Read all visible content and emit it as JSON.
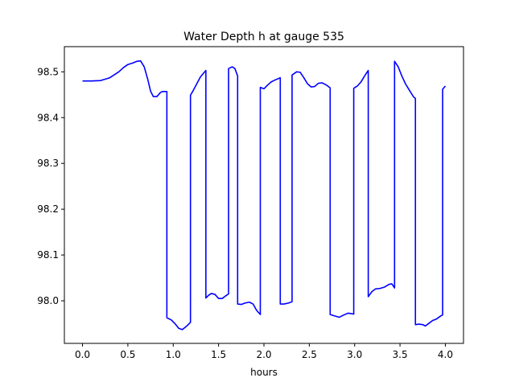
{
  "chart_data": {
    "type": "line",
    "title": "Water Depth h at gauge 535",
    "xlabel": "hours",
    "ylabel": "",
    "xlim": [
      -0.2,
      4.2
    ],
    "ylim": [
      97.907,
      98.555
    ],
    "x_ticks": [
      0.0,
      0.5,
      1.0,
      1.5,
      2.0,
      2.5,
      3.0,
      3.5,
      4.0
    ],
    "x_tick_labels": [
      "0.0",
      "0.5",
      "1.0",
      "1.5",
      "2.0",
      "2.5",
      "3.0",
      "3.5",
      "4.0"
    ],
    "y_ticks": [
      98.0,
      98.1,
      98.2,
      98.3,
      98.4,
      98.5
    ],
    "y_tick_labels": [
      "98.0",
      "98.1",
      "98.2",
      "98.3",
      "98.4",
      "98.5"
    ],
    "grid": false,
    "legend": "none",
    "series": [
      {
        "color": "#0000ff",
        "points": [
          [
            0.0,
            98.48
          ],
          [
            0.1,
            98.48
          ],
          [
            0.2,
            98.481
          ],
          [
            0.3,
            98.487
          ],
          [
            0.4,
            98.5
          ],
          [
            0.45,
            98.509
          ],
          [
            0.5,
            98.516
          ],
          [
            0.55,
            98.519
          ],
          [
            0.6,
            98.523
          ],
          [
            0.64,
            98.524
          ],
          [
            0.68,
            98.511
          ],
          [
            0.72,
            98.483
          ],
          [
            0.75,
            98.458
          ],
          [
            0.78,
            98.446
          ],
          [
            0.82,
            98.446
          ],
          [
            0.86,
            98.455
          ],
          [
            0.88,
            98.457
          ],
          [
            0.93,
            98.457
          ],
          [
            0.93,
            97.963
          ],
          [
            0.98,
            97.958
          ],
          [
            1.02,
            97.95
          ],
          [
            1.06,
            97.94
          ],
          [
            1.1,
            97.937
          ],
          [
            1.15,
            97.945
          ],
          [
            1.19,
            97.953
          ],
          [
            1.19,
            98.449
          ],
          [
            1.22,
            98.459
          ],
          [
            1.26,
            98.474
          ],
          [
            1.3,
            98.489
          ],
          [
            1.36,
            98.503
          ],
          [
            1.36,
            98.006
          ],
          [
            1.39,
            98.012
          ],
          [
            1.42,
            98.016
          ],
          [
            1.46,
            98.014
          ],
          [
            1.5,
            98.005
          ],
          [
            1.54,
            98.005
          ],
          [
            1.58,
            98.011
          ],
          [
            1.61,
            98.015
          ],
          [
            1.61,
            98.507
          ],
          [
            1.65,
            98.511
          ],
          [
            1.68,
            98.507
          ],
          [
            1.71,
            98.491
          ],
          [
            1.71,
            97.993
          ],
          [
            1.75,
            97.992
          ],
          [
            1.79,
            97.995
          ],
          [
            1.84,
            97.997
          ],
          [
            1.88,
            97.993
          ],
          [
            1.92,
            97.979
          ],
          [
            1.96,
            97.97
          ],
          [
            1.96,
            98.466
          ],
          [
            2.0,
            98.463
          ],
          [
            2.04,
            98.471
          ],
          [
            2.08,
            98.478
          ],
          [
            2.12,
            98.482
          ],
          [
            2.18,
            98.487
          ],
          [
            2.18,
            97.993
          ],
          [
            2.22,
            97.993
          ],
          [
            2.27,
            97.995
          ],
          [
            2.31,
            97.998
          ],
          [
            2.31,
            98.493
          ],
          [
            2.36,
            98.5
          ],
          [
            2.4,
            98.499
          ],
          [
            2.44,
            98.487
          ],
          [
            2.48,
            98.474
          ],
          [
            2.52,
            98.467
          ],
          [
            2.56,
            98.468
          ],
          [
            2.6,
            98.475
          ],
          [
            2.64,
            98.476
          ],
          [
            2.69,
            98.471
          ],
          [
            2.73,
            98.465
          ],
          [
            2.73,
            97.97
          ],
          [
            2.78,
            97.967
          ],
          [
            2.83,
            97.964
          ],
          [
            2.88,
            97.969
          ],
          [
            2.93,
            97.973
          ],
          [
            2.99,
            97.971
          ],
          [
            2.99,
            98.464
          ],
          [
            3.03,
            98.469
          ],
          [
            3.07,
            98.478
          ],
          [
            3.11,
            98.491
          ],
          [
            3.15,
            98.503
          ],
          [
            3.15,
            98.009
          ],
          [
            3.19,
            98.02
          ],
          [
            3.23,
            98.026
          ],
          [
            3.28,
            98.027
          ],
          [
            3.33,
            98.03
          ],
          [
            3.38,
            98.036
          ],
          [
            3.41,
            98.037
          ],
          [
            3.44,
            98.028
          ],
          [
            3.44,
            98.523
          ],
          [
            3.48,
            98.511
          ],
          [
            3.52,
            98.491
          ],
          [
            3.56,
            98.474
          ],
          [
            3.6,
            98.461
          ],
          [
            3.65,
            98.445
          ],
          [
            3.67,
            98.442
          ],
          [
            3.67,
            97.948
          ],
          [
            3.71,
            97.949
          ],
          [
            3.75,
            97.948
          ],
          [
            3.78,
            97.945
          ],
          [
            3.82,
            97.951
          ],
          [
            3.86,
            97.957
          ],
          [
            3.9,
            97.96
          ],
          [
            3.95,
            97.967
          ],
          [
            3.97,
            97.969
          ],
          [
            3.97,
            98.462
          ],
          [
            4.0,
            98.469
          ]
        ]
      }
    ]
  }
}
